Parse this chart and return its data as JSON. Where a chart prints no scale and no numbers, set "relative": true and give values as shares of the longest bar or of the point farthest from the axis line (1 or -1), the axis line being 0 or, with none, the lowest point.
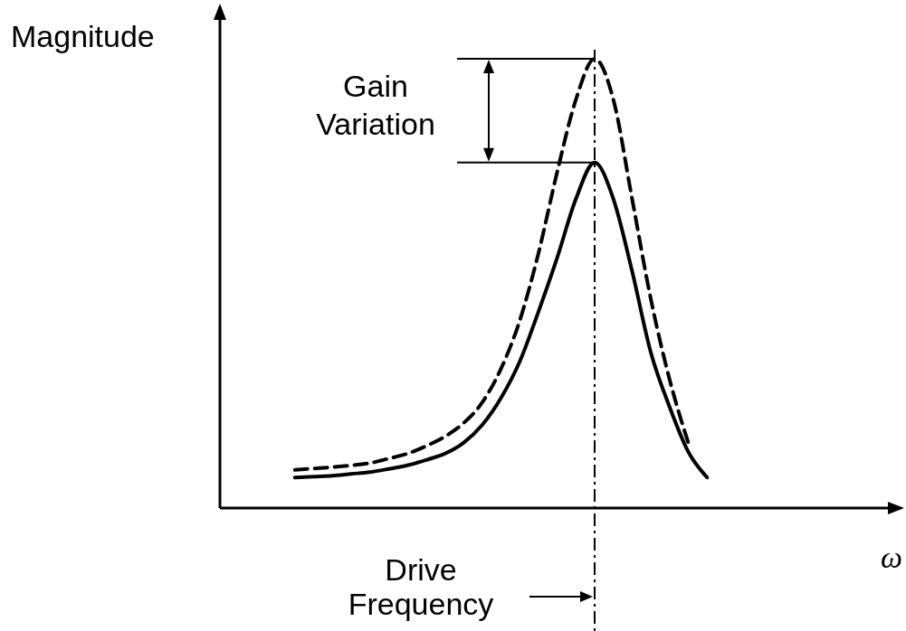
{
  "chart_data": {
    "type": "line",
    "relative": true,
    "ylabel": "Magnitude",
    "xlabel": "ω",
    "categories": [
      null,
      null,
      null,
      null,
      null,
      null,
      null,
      null,
      null,
      null,
      null,
      null,
      null,
      null,
      null,
      null,
      null,
      null,
      null,
      null,
      null,
      null,
      null,
      null,
      null,
      null,
      null,
      null,
      null,
      null,
      null,
      null,
      null,
      null,
      null,
      null,
      null
    ],
    "series": [
      {
        "color": "#000000",
        "line_style": "solid",
        "values": [
          null,
          null,
          null,
          null,
          0.068,
          0.07,
          0.072,
          0.076,
          0.08,
          0.087,
          0.095,
          0.107,
          0.121,
          0.145,
          0.185,
          0.245,
          0.326,
          0.437,
          0.557,
          0.688,
          0.769,
          0.688,
          0.527,
          0.346,
          0.225,
          0.125,
          0.068,
          null,
          null,
          null,
          null,
          null,
          null,
          null,
          null,
          null,
          null
        ]
      },
      {
        "color": "#000000",
        "line_style": "dashed",
        "values": [
          null,
          null,
          null,
          null,
          0.085,
          0.088,
          0.091,
          0.095,
          0.1,
          0.11,
          0.121,
          0.138,
          0.159,
          0.189,
          0.235,
          0.31,
          0.417,
          0.567,
          0.748,
          0.909,
          1,
          0.909,
          0.688,
          0.465,
          0.286,
          0.145,
          null,
          null,
          null,
          null,
          null,
          null,
          null,
          null,
          null,
          null,
          null
        ]
      }
    ],
    "annotations": [
      "Gain Variation",
      "Drive Frequency"
    ]
  }
}
